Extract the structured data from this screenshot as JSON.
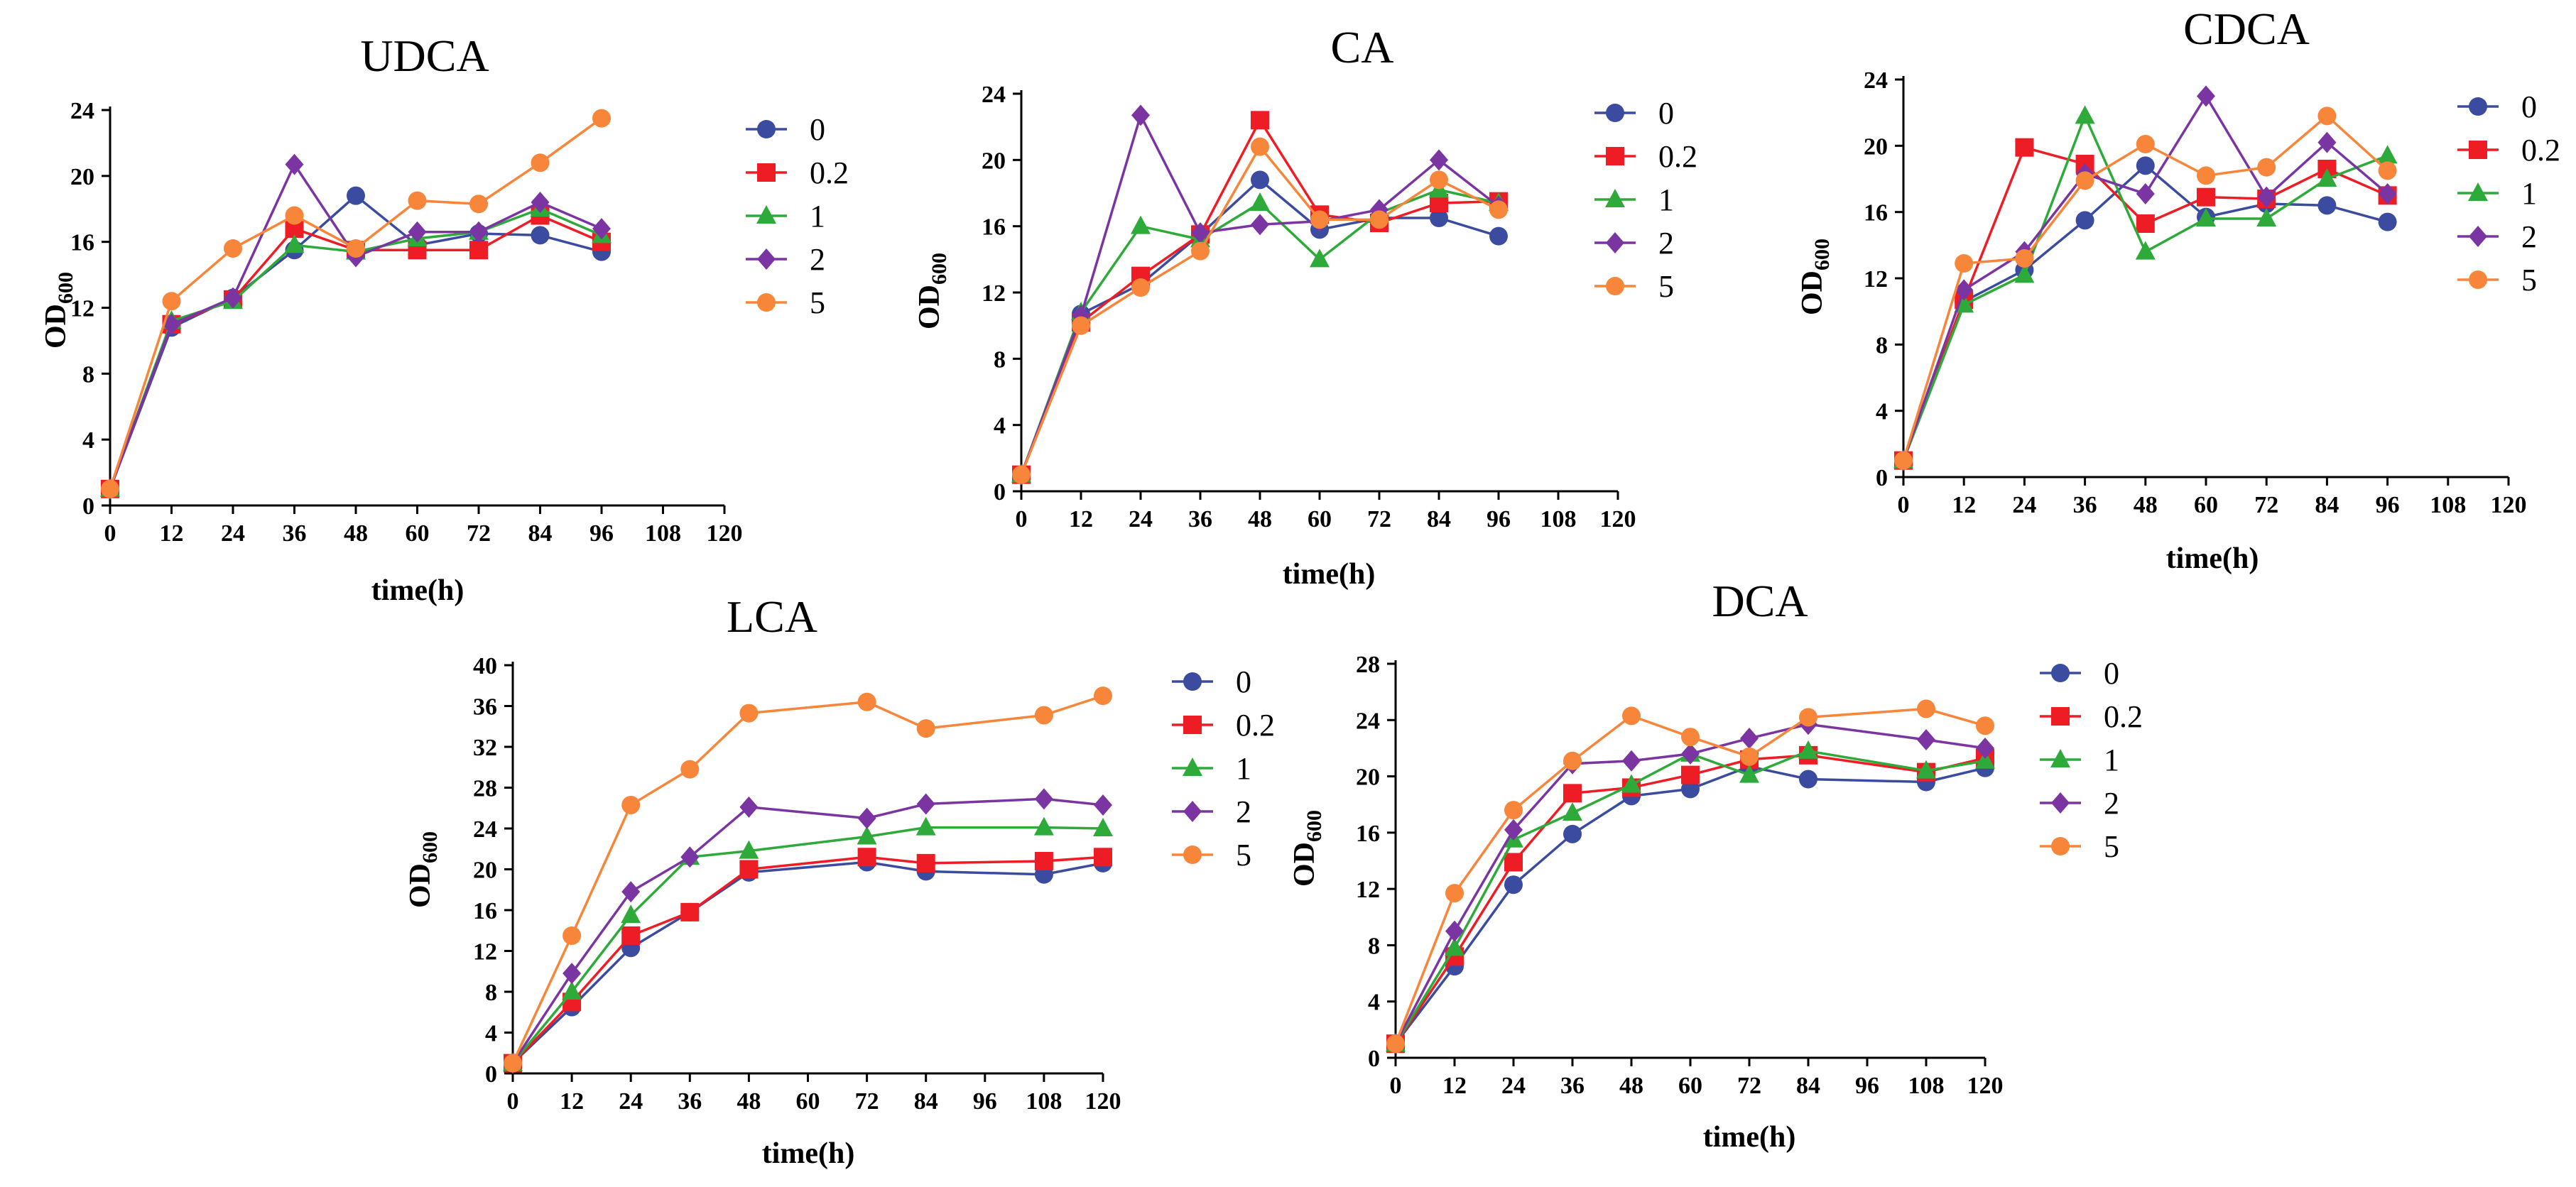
{
  "colors": {
    "0": "#3b4ba0",
    "0.2": "#ee1c24",
    "1": "#2eaa3a",
    "2": "#7b35a3",
    "5": "#f7863a"
  },
  "series_markers": {
    "0": "circle",
    "0.2": "square",
    "1": "triangle",
    "2": "diamond",
    "5": "circle"
  },
  "chart_data": [
    {
      "type": "line",
      "title": "UDCA",
      "xlabel": "time(h)",
      "ylabel_main": "OD",
      "ylabel_sub": "600",
      "xlim": [
        0,
        120
      ],
      "xticks": [
        0,
        12,
        24,
        36,
        48,
        60,
        72,
        84,
        96,
        108,
        120
      ],
      "ylim": [
        0,
        24
      ],
      "yticks": [
        0,
        4,
        8,
        12,
        16,
        20,
        24
      ],
      "legend": [
        "0",
        "0.2",
        "1",
        "2",
        "5"
      ],
      "series": [
        {
          "name": "0",
          "x": [
            0,
            12,
            24,
            36,
            48,
            60,
            72,
            84,
            96
          ],
          "values": [
            1.0,
            10.8,
            12.6,
            15.5,
            18.8,
            15.8,
            16.5,
            16.4,
            15.4
          ]
        },
        {
          "name": "0.2",
          "x": [
            0,
            12,
            24,
            36,
            48,
            60,
            72,
            84,
            96
          ],
          "values": [
            1.0,
            11.0,
            12.5,
            16.8,
            15.5,
            15.5,
            15.5,
            17.6,
            16.0
          ]
        },
        {
          "name": "1",
          "x": [
            0,
            12,
            24,
            36,
            48,
            60,
            72,
            84,
            96
          ],
          "values": [
            1.0,
            11.2,
            12.4,
            15.8,
            15.4,
            16.2,
            16.6,
            18.0,
            16.4
          ]
        },
        {
          "name": "2",
          "x": [
            0,
            12,
            24,
            36,
            48,
            60,
            72,
            84,
            96
          ],
          "values": [
            1.0,
            11.0,
            12.6,
            20.7,
            15.1,
            16.6,
            16.6,
            18.4,
            16.8
          ]
        },
        {
          "name": "5",
          "x": [
            0,
            12,
            24,
            36,
            48,
            60,
            72,
            84,
            96
          ],
          "values": [
            1.0,
            12.4,
            15.6,
            17.6,
            15.6,
            18.5,
            18.3,
            20.8,
            23.5
          ]
        }
      ]
    },
    {
      "type": "line",
      "title": "CA",
      "xlabel": "time(h)",
      "ylabel_main": "OD",
      "ylabel_sub": "600",
      "xlim": [
        0,
        120
      ],
      "xticks": [
        0,
        12,
        24,
        36,
        48,
        60,
        72,
        84,
        96,
        108,
        120
      ],
      "ylim": [
        0,
        24
      ],
      "yticks": [
        0,
        4,
        8,
        12,
        16,
        20,
        24
      ],
      "legend": [
        "0",
        "0.2",
        "1",
        "2",
        "5"
      ],
      "series": [
        {
          "name": "0",
          "x": [
            0,
            12,
            24,
            36,
            48,
            60,
            72,
            84,
            96
          ],
          "values": [
            1.0,
            10.7,
            12.5,
            15.5,
            18.8,
            15.8,
            16.5,
            16.5,
            15.4
          ]
        },
        {
          "name": "0.2",
          "x": [
            0,
            12,
            24,
            36,
            48,
            60,
            72,
            84,
            96
          ],
          "values": [
            1.0,
            10.2,
            13.0,
            15.5,
            22.4,
            16.7,
            16.2,
            17.4,
            17.5
          ]
        },
        {
          "name": "1",
          "x": [
            0,
            12,
            24,
            36,
            48,
            60,
            72,
            84,
            96
          ],
          "values": [
            1.0,
            10.8,
            16.0,
            15.2,
            17.4,
            14.0,
            16.8,
            18.2,
            17.4
          ]
        },
        {
          "name": "2",
          "x": [
            0,
            12,
            24,
            36,
            48,
            60,
            72,
            84,
            96
          ],
          "values": [
            1.0,
            10.6,
            22.7,
            15.6,
            16.1,
            16.3,
            17.0,
            20.0,
            17.2
          ]
        },
        {
          "name": "5",
          "x": [
            0,
            12,
            24,
            36,
            48,
            60,
            72,
            84,
            96
          ],
          "values": [
            1.0,
            10.0,
            12.3,
            14.5,
            20.8,
            16.4,
            16.4,
            18.8,
            17.0
          ]
        }
      ]
    },
    {
      "type": "line",
      "title": "CDCA",
      "xlabel": "time(h)",
      "ylabel_main": "OD",
      "ylabel_sub": "600",
      "xlim": [
        0,
        120
      ],
      "xticks": [
        0,
        12,
        24,
        36,
        48,
        60,
        72,
        84,
        96,
        108,
        120
      ],
      "ylim": [
        0,
        24
      ],
      "yticks": [
        0,
        4,
        8,
        12,
        16,
        20,
        24
      ],
      "legend": [
        "0",
        "0.2",
        "1",
        "2",
        "5"
      ],
      "series": [
        {
          "name": "0",
          "x": [
            0,
            12,
            24,
            36,
            48,
            60,
            72,
            84,
            96
          ],
          "values": [
            1.0,
            10.6,
            12.5,
            15.5,
            18.8,
            15.7,
            16.5,
            16.4,
            15.4
          ]
        },
        {
          "name": "0.2",
          "x": [
            0,
            12,
            24,
            36,
            48,
            60,
            72,
            84,
            96
          ],
          "values": [
            1.0,
            10.7,
            19.9,
            18.9,
            15.3,
            16.9,
            16.8,
            18.6,
            17.0
          ]
        },
        {
          "name": "1",
          "x": [
            0,
            12,
            24,
            36,
            48,
            60,
            72,
            84,
            96
          ],
          "values": [
            1.0,
            10.4,
            12.2,
            21.8,
            13.6,
            15.6,
            15.6,
            18.0,
            19.4
          ]
        },
        {
          "name": "2",
          "x": [
            0,
            12,
            24,
            36,
            48,
            60,
            72,
            84,
            96
          ],
          "values": [
            1.0,
            11.3,
            13.6,
            18.3,
            17.1,
            23.0,
            16.9,
            20.2,
            17.1
          ]
        },
        {
          "name": "5",
          "x": [
            0,
            12,
            24,
            36,
            48,
            60,
            72,
            84,
            96
          ],
          "values": [
            1.0,
            12.9,
            13.2,
            17.9,
            20.1,
            18.2,
            18.7,
            21.8,
            18.5
          ]
        }
      ]
    },
    {
      "type": "line",
      "title": "LCA",
      "xlabel": "time(h)",
      "ylabel_main": "OD",
      "ylabel_sub": "600",
      "xlim": [
        0,
        120
      ],
      "xticks": [
        0,
        12,
        24,
        36,
        48,
        60,
        72,
        84,
        96,
        108,
        120
      ],
      "ylim": [
        0,
        40
      ],
      "yticks": [
        0,
        4,
        8,
        12,
        16,
        20,
        24,
        28,
        32,
        36,
        40
      ],
      "legend": [
        "0",
        "0.2",
        "1",
        "2",
        "5"
      ],
      "series": [
        {
          "name": "0",
          "x": [
            0,
            12,
            24,
            36,
            48,
            72,
            84,
            108,
            120
          ],
          "values": [
            1.0,
            6.5,
            12.3,
            15.8,
            19.7,
            20.7,
            19.8,
            19.5,
            20.6
          ]
        },
        {
          "name": "0.2",
          "x": [
            0,
            12,
            24,
            36,
            48,
            72,
            84,
            108,
            120
          ],
          "values": [
            1.0,
            7.0,
            13.5,
            15.8,
            20.0,
            21.2,
            20.6,
            20.8,
            21.2
          ]
        },
        {
          "name": "1",
          "x": [
            0,
            12,
            24,
            36,
            48,
            72,
            84,
            108,
            120
          ],
          "values": [
            1.0,
            8.0,
            15.5,
            21.2,
            21.8,
            23.2,
            24.1,
            24.1,
            24.0
          ]
        },
        {
          "name": "2",
          "x": [
            0,
            12,
            24,
            36,
            48,
            72,
            84,
            108,
            120
          ],
          "values": [
            1.0,
            9.8,
            17.8,
            21.2,
            26.1,
            25.0,
            26.4,
            26.9,
            26.3
          ]
        },
        {
          "name": "5",
          "x": [
            0,
            12,
            24,
            36,
            48,
            72,
            84,
            108,
            120
          ],
          "values": [
            1.0,
            13.5,
            26.3,
            29.8,
            35.3,
            36.4,
            33.8,
            35.1,
            37.0
          ]
        }
      ]
    },
    {
      "type": "line",
      "title": "DCA",
      "xlabel": "time(h)",
      "ylabel_main": "OD",
      "ylabel_sub": "600",
      "xlim": [
        0,
        120
      ],
      "xticks": [
        0,
        12,
        24,
        36,
        48,
        60,
        72,
        84,
        96,
        108,
        120
      ],
      "ylim": [
        0,
        28
      ],
      "yticks": [
        0,
        4,
        8,
        12,
        16,
        20,
        24,
        28
      ],
      "legend": [
        "0",
        "0.2",
        "1",
        "2",
        "5"
      ],
      "series": [
        {
          "name": "0",
          "x": [
            0,
            12,
            24,
            36,
            48,
            60,
            72,
            84,
            108,
            120
          ],
          "values": [
            1.0,
            6.5,
            12.3,
            15.9,
            18.6,
            19.1,
            20.7,
            19.8,
            19.6,
            20.6
          ]
        },
        {
          "name": "0.2",
          "x": [
            0,
            12,
            24,
            36,
            48,
            60,
            72,
            84,
            108,
            120
          ],
          "values": [
            1.0,
            7.2,
            13.9,
            18.8,
            19.2,
            20.1,
            21.2,
            21.5,
            20.3,
            21.3
          ]
        },
        {
          "name": "1",
          "x": [
            0,
            12,
            24,
            36,
            48,
            60,
            72,
            84,
            108,
            120
          ],
          "values": [
            1.0,
            7.8,
            15.5,
            17.4,
            19.4,
            21.6,
            20.1,
            21.8,
            20.4,
            21.1
          ]
        },
        {
          "name": "2",
          "x": [
            0,
            12,
            24,
            36,
            48,
            60,
            72,
            84,
            108,
            120
          ],
          "values": [
            1.0,
            9.0,
            16.2,
            20.9,
            21.1,
            21.6,
            22.7,
            23.7,
            22.6,
            22.0
          ]
        },
        {
          "name": "5",
          "x": [
            0,
            12,
            24,
            36,
            48,
            60,
            72,
            84,
            108,
            120
          ],
          "values": [
            1.0,
            11.7,
            17.6,
            21.1,
            24.3,
            22.8,
            21.4,
            24.2,
            24.8,
            23.6
          ]
        }
      ]
    }
  ]
}
